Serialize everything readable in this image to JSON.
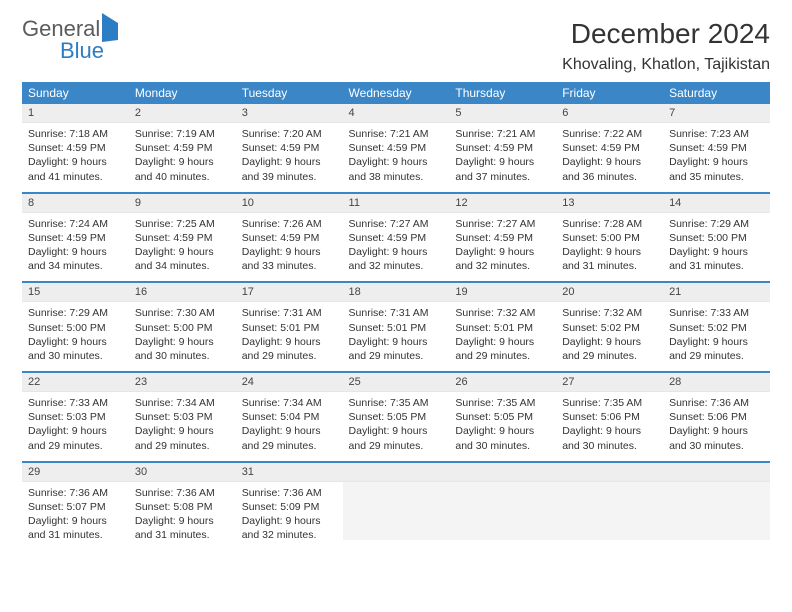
{
  "brand": {
    "part1": "General",
    "part2": "Blue"
  },
  "title": "December 2024",
  "location": "Khovaling, Khatlon, Tajikistan",
  "day_headers": [
    "Sunday",
    "Monday",
    "Tuesday",
    "Wednesday",
    "Thursday",
    "Friday",
    "Saturday"
  ],
  "colors": {
    "header_bg": "#3b86c7",
    "header_fg": "#ffffff",
    "row_divider": "#3b86c7",
    "daynum_bg": "#eeeeee",
    "text": "#333333",
    "brand_gray": "#5c5c5c",
    "brand_blue": "#2d7dc4"
  },
  "typography": {
    "title_fontsize": 28,
    "location_fontsize": 16,
    "header_fontsize": 12,
    "daynum_fontsize": 11,
    "cell_fontsize": 10.5
  },
  "weeks": [
    [
      {
        "n": "1",
        "sr": "7:18 AM",
        "ss": "4:59 PM",
        "dl": "9 hours and 41 minutes."
      },
      {
        "n": "2",
        "sr": "7:19 AM",
        "ss": "4:59 PM",
        "dl": "9 hours and 40 minutes."
      },
      {
        "n": "3",
        "sr": "7:20 AM",
        "ss": "4:59 PM",
        "dl": "9 hours and 39 minutes."
      },
      {
        "n": "4",
        "sr": "7:21 AM",
        "ss": "4:59 PM",
        "dl": "9 hours and 38 minutes."
      },
      {
        "n": "5",
        "sr": "7:21 AM",
        "ss": "4:59 PM",
        "dl": "9 hours and 37 minutes."
      },
      {
        "n": "6",
        "sr": "7:22 AM",
        "ss": "4:59 PM",
        "dl": "9 hours and 36 minutes."
      },
      {
        "n": "7",
        "sr": "7:23 AM",
        "ss": "4:59 PM",
        "dl": "9 hours and 35 minutes."
      }
    ],
    [
      {
        "n": "8",
        "sr": "7:24 AM",
        "ss": "4:59 PM",
        "dl": "9 hours and 34 minutes."
      },
      {
        "n": "9",
        "sr": "7:25 AM",
        "ss": "4:59 PM",
        "dl": "9 hours and 34 minutes."
      },
      {
        "n": "10",
        "sr": "7:26 AM",
        "ss": "4:59 PM",
        "dl": "9 hours and 33 minutes."
      },
      {
        "n": "11",
        "sr": "7:27 AM",
        "ss": "4:59 PM",
        "dl": "9 hours and 32 minutes."
      },
      {
        "n": "12",
        "sr": "7:27 AM",
        "ss": "4:59 PM",
        "dl": "9 hours and 32 minutes."
      },
      {
        "n": "13",
        "sr": "7:28 AM",
        "ss": "5:00 PM",
        "dl": "9 hours and 31 minutes."
      },
      {
        "n": "14",
        "sr": "7:29 AM",
        "ss": "5:00 PM",
        "dl": "9 hours and 31 minutes."
      }
    ],
    [
      {
        "n": "15",
        "sr": "7:29 AM",
        "ss": "5:00 PM",
        "dl": "9 hours and 30 minutes."
      },
      {
        "n": "16",
        "sr": "7:30 AM",
        "ss": "5:00 PM",
        "dl": "9 hours and 30 minutes."
      },
      {
        "n": "17",
        "sr": "7:31 AM",
        "ss": "5:01 PM",
        "dl": "9 hours and 29 minutes."
      },
      {
        "n": "18",
        "sr": "7:31 AM",
        "ss": "5:01 PM",
        "dl": "9 hours and 29 minutes."
      },
      {
        "n": "19",
        "sr": "7:32 AM",
        "ss": "5:01 PM",
        "dl": "9 hours and 29 minutes."
      },
      {
        "n": "20",
        "sr": "7:32 AM",
        "ss": "5:02 PM",
        "dl": "9 hours and 29 minutes."
      },
      {
        "n": "21",
        "sr": "7:33 AM",
        "ss": "5:02 PM",
        "dl": "9 hours and 29 minutes."
      }
    ],
    [
      {
        "n": "22",
        "sr": "7:33 AM",
        "ss": "5:03 PM",
        "dl": "9 hours and 29 minutes."
      },
      {
        "n": "23",
        "sr": "7:34 AM",
        "ss": "5:03 PM",
        "dl": "9 hours and 29 minutes."
      },
      {
        "n": "24",
        "sr": "7:34 AM",
        "ss": "5:04 PM",
        "dl": "9 hours and 29 minutes."
      },
      {
        "n": "25",
        "sr": "7:35 AM",
        "ss": "5:05 PM",
        "dl": "9 hours and 29 minutes."
      },
      {
        "n": "26",
        "sr": "7:35 AM",
        "ss": "5:05 PM",
        "dl": "9 hours and 30 minutes."
      },
      {
        "n": "27",
        "sr": "7:35 AM",
        "ss": "5:06 PM",
        "dl": "9 hours and 30 minutes."
      },
      {
        "n": "28",
        "sr": "7:36 AM",
        "ss": "5:06 PM",
        "dl": "9 hours and 30 minutes."
      }
    ],
    [
      {
        "n": "29",
        "sr": "7:36 AM",
        "ss": "5:07 PM",
        "dl": "9 hours and 31 minutes."
      },
      {
        "n": "30",
        "sr": "7:36 AM",
        "ss": "5:08 PM",
        "dl": "9 hours and 31 minutes."
      },
      {
        "n": "31",
        "sr": "7:36 AM",
        "ss": "5:09 PM",
        "dl": "9 hours and 32 minutes."
      },
      null,
      null,
      null,
      null
    ]
  ],
  "labels": {
    "sunrise": "Sunrise: ",
    "sunset": "Sunset: ",
    "daylight": "Daylight: "
  }
}
